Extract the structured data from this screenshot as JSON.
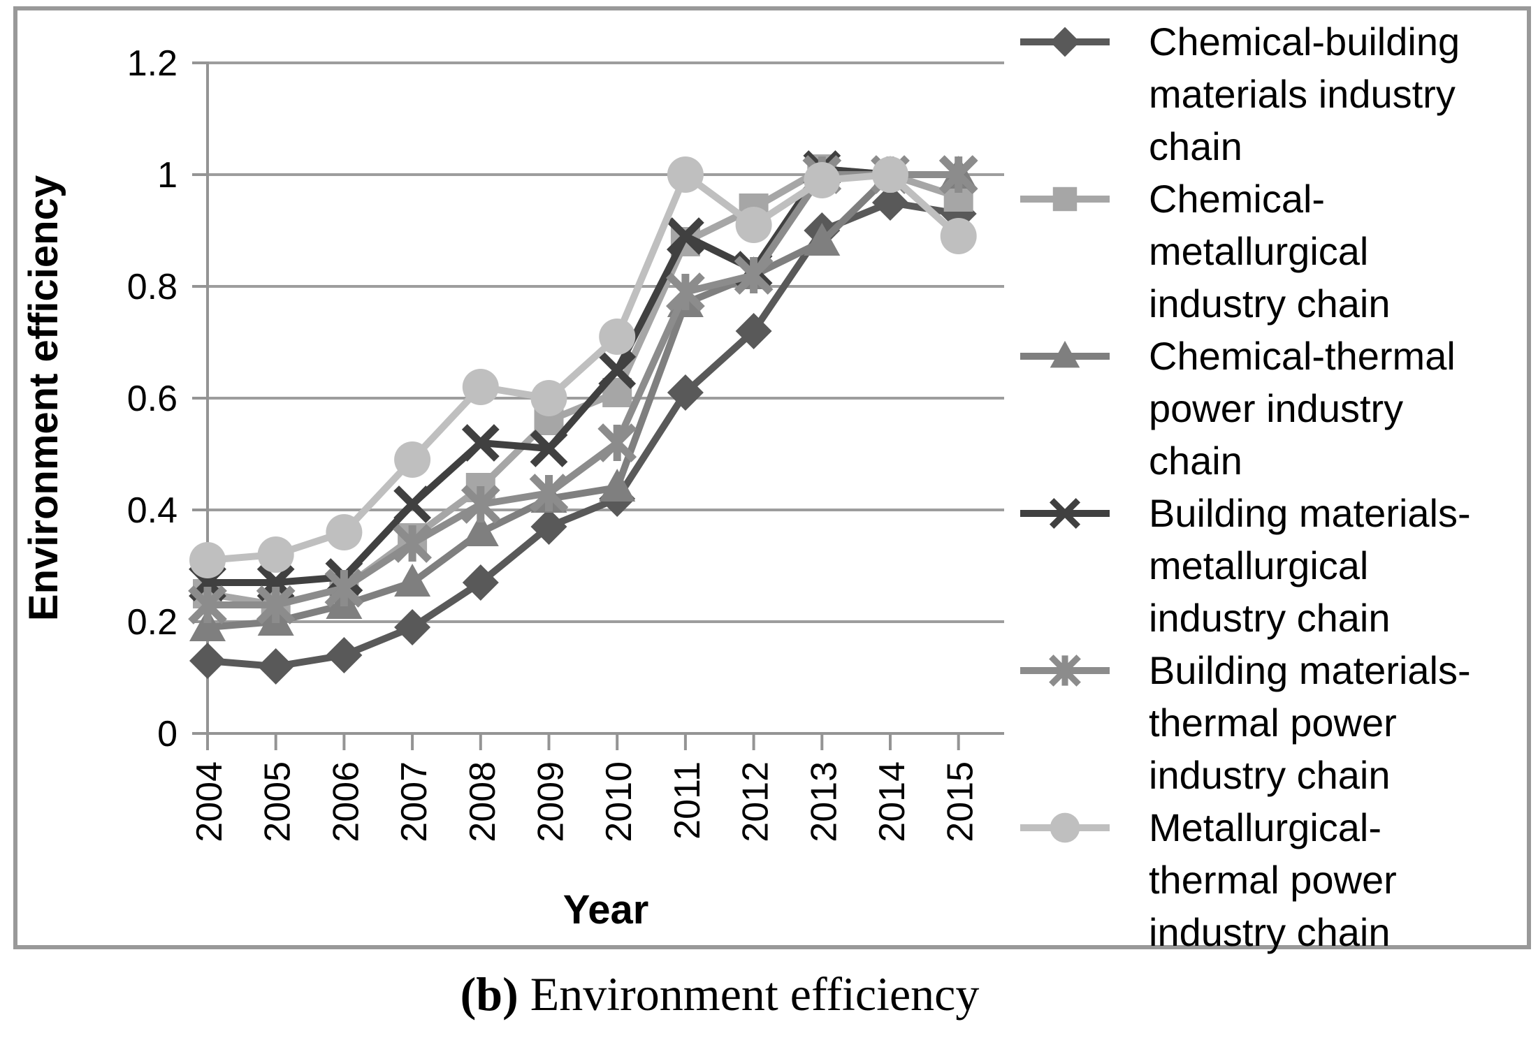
{
  "figure": {
    "caption_label": "(b)",
    "caption_text": " Environment efficiency"
  },
  "chart_data": {
    "type": "line",
    "title": "",
    "xlabel": "Year",
    "ylabel": "Environment efficiency",
    "x": [
      "2004",
      "2005",
      "2006",
      "2007",
      "2008",
      "2009",
      "2010",
      "2011",
      "2012",
      "2013",
      "2014",
      "2015"
    ],
    "ylim": [
      0,
      1.2
    ],
    "yticks": [
      0,
      0.2,
      0.4,
      0.6,
      0.8,
      1,
      1.2
    ],
    "ytick_labels": [
      "0",
      "0.2",
      "0.4",
      "0.6",
      "0.8",
      "1",
      "1.2"
    ],
    "grid": true,
    "legend_position": "right-inside",
    "axis_color": "#949494",
    "grid_color": "#9d9d9d",
    "frame_color": "#999999",
    "series": [
      {
        "name": "Chemical-building materials industry chain",
        "label_lines": [
          "Chemical-building",
          "materials industry",
          "chain"
        ],
        "marker": "diamond",
        "color": "#595959",
        "values": [
          0.13,
          0.12,
          0.14,
          0.19,
          0.27,
          0.37,
          0.42,
          0.61,
          0.72,
          0.9,
          0.95,
          0.93
        ]
      },
      {
        "name": "Chemical-metallurgical industry chain",
        "label_lines": [
          "Chemical-",
          "metallurgical",
          "industry chain"
        ],
        "marker": "square",
        "color": "#a6a6a6",
        "values": [
          0.25,
          0.23,
          0.26,
          0.35,
          0.44,
          0.56,
          0.61,
          0.88,
          0.94,
          1.01,
          1.0,
          0.96
        ]
      },
      {
        "name": "Chemical-thermal power industry chain",
        "label_lines": [
          "Chemical-thermal",
          "power industry",
          "chain"
        ],
        "marker": "triangle",
        "color": "#7f7f7f",
        "values": [
          0.19,
          0.2,
          0.23,
          0.27,
          0.36,
          0.42,
          0.44,
          0.77,
          0.82,
          0.88,
          1.0,
          1.0
        ]
      },
      {
        "name": "Building materials-metallurgical industry chain",
        "label_lines": [
          "Building materials-",
          "metallurgical",
          "industry chain"
        ],
        "marker": "x",
        "color": "#404040",
        "values": [
          0.27,
          0.27,
          0.28,
          0.41,
          0.52,
          0.51,
          0.65,
          0.89,
          0.83,
          1.01,
          1.0,
          1.0
        ]
      },
      {
        "name": "Building materials-thermal power industry chain",
        "label_lines": [
          "Building materials-",
          "thermal power",
          "industry chain"
        ],
        "marker": "asterisk",
        "color": "#8c8c8c",
        "values": [
          0.23,
          0.23,
          0.26,
          0.34,
          0.41,
          0.43,
          0.52,
          0.79,
          0.82,
          1.0,
          1.0,
          1.0
        ]
      },
      {
        "name": "Metallurgical-thermal power industry chain",
        "label_lines": [
          "Metallurgical-",
          "thermal power",
          "industry chain"
        ],
        "marker": "circle",
        "color": "#bfbfbf",
        "values": [
          0.31,
          0.32,
          0.36,
          0.49,
          0.62,
          0.6,
          0.71,
          1.0,
          0.91,
          0.99,
          1.0,
          0.89
        ]
      }
    ]
  }
}
